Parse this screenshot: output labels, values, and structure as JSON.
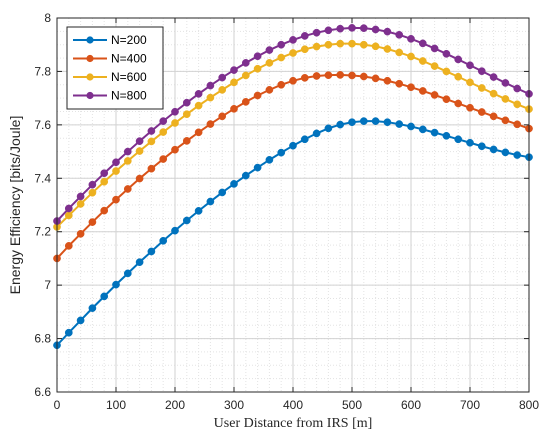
{
  "chart_data": {
    "type": "line",
    "title": "",
    "xlabel": "User Distance from IRS [m]",
    "ylabel": "Energy Efficiency [bits/Joule]",
    "xlim": [
      0,
      800
    ],
    "ylim": [
      6.6,
      8
    ],
    "xticks": [
      0,
      100,
      200,
      300,
      400,
      500,
      600,
      700,
      800
    ],
    "yticks": [
      6.6,
      6.8,
      7,
      7.2,
      7.4,
      7.6,
      7.8,
      8
    ],
    "xtick_labels": [
      "0",
      "100",
      "200",
      "300",
      "400",
      "500",
      "600",
      "700",
      "800"
    ],
    "ytick_labels": [
      "6.6",
      "6.8",
      "7",
      "7.2",
      "7.4",
      "7.6",
      "7.8",
      "8"
    ],
    "grid": true,
    "legend_position": "top-left",
    "x": [
      0,
      20,
      40,
      60,
      80,
      100,
      120,
      140,
      160,
      180,
      200,
      220,
      240,
      260,
      280,
      300,
      320,
      340,
      360,
      380,
      400,
      420,
      440,
      460,
      480,
      500,
      520,
      540,
      560,
      580,
      600,
      620,
      640,
      660,
      680,
      700,
      720,
      740,
      760,
      780,
      800
    ],
    "series": [
      {
        "name": "N=200",
        "color": "#0072BD",
        "marker": "circle",
        "values": [
          6.775,
          6.822,
          6.868,
          6.914,
          6.958,
          7.002,
          7.044,
          7.086,
          7.126,
          7.166,
          7.204,
          7.242,
          7.278,
          7.313,
          7.347,
          7.379,
          7.41,
          7.44,
          7.469,
          7.496,
          7.522,
          7.546,
          7.568,
          7.587,
          7.601,
          7.61,
          7.614,
          7.614,
          7.61,
          7.603,
          7.594,
          7.583,
          7.571,
          7.559,
          7.546,
          7.533,
          7.52,
          7.508,
          7.497,
          7.487,
          7.479
        ]
      },
      {
        "name": "N=400",
        "color": "#D95319",
        "marker": "circle",
        "values": [
          7.1,
          7.147,
          7.192,
          7.236,
          7.279,
          7.32,
          7.36,
          7.399,
          7.436,
          7.472,
          7.507,
          7.54,
          7.572,
          7.603,
          7.632,
          7.66,
          7.686,
          7.71,
          7.731,
          7.75,
          7.765,
          7.776,
          7.783,
          7.786,
          7.787,
          7.785,
          7.781,
          7.774,
          7.765,
          7.754,
          7.741,
          7.727,
          7.712,
          7.696,
          7.68,
          7.664,
          7.648,
          7.632,
          7.617,
          7.602,
          7.586
        ]
      },
      {
        "name": "N=600",
        "color": "#EDB120",
        "marker": "circle",
        "values": [
          7.218,
          7.261,
          7.304,
          7.346,
          7.387,
          7.427,
          7.465,
          7.502,
          7.538,
          7.573,
          7.607,
          7.64,
          7.672,
          7.702,
          7.731,
          7.759,
          7.785,
          7.81,
          7.832,
          7.852,
          7.869,
          7.883,
          7.893,
          7.9,
          7.904,
          7.904,
          7.9,
          7.894,
          7.884,
          7.871,
          7.856,
          7.839,
          7.82,
          7.8,
          7.78,
          7.759,
          7.738,
          7.717,
          7.697,
          7.677,
          7.659
        ]
      },
      {
        "name": "N=800",
        "color": "#7E2F8E",
        "marker": "circle",
        "values": [
          7.24,
          7.287,
          7.332,
          7.376,
          7.419,
          7.46,
          7.5,
          7.539,
          7.577,
          7.614,
          7.649,
          7.683,
          7.716,
          7.747,
          7.777,
          7.805,
          7.832,
          7.857,
          7.88,
          7.9,
          7.918,
          7.933,
          7.945,
          7.954,
          7.96,
          7.963,
          7.962,
          7.957,
          7.949,
          7.937,
          7.922,
          7.905,
          7.886,
          7.866,
          7.845,
          7.823,
          7.801,
          7.779,
          7.757,
          7.736,
          7.716
        ]
      }
    ]
  }
}
